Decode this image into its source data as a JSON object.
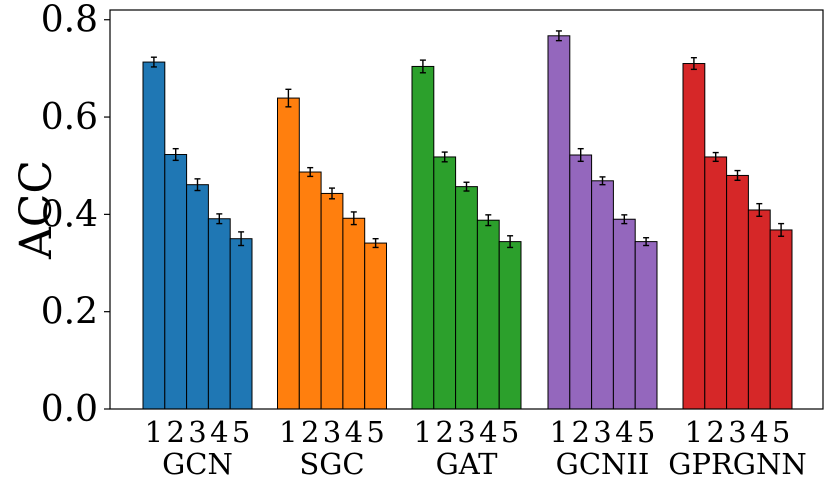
{
  "chart_data": {
    "type": "bar",
    "title": "",
    "ylabel": "ACC",
    "xlabel": "",
    "ylim": [
      0,
      0.82
    ],
    "yticks": [
      "0.0",
      "0.2",
      "0.4",
      "0.6",
      "0.8"
    ],
    "ytick_values": [
      0.0,
      0.2,
      0.4,
      0.6,
      0.8
    ],
    "grid": false,
    "legend": "none",
    "subcategories": [
      "1",
      "2",
      "3",
      "4",
      "5"
    ],
    "groups": [
      {
        "name": "GCN",
        "color": "#1f77b4",
        "values": [
          0.713,
          0.523,
          0.461,
          0.391,
          0.35
        ],
        "errors": [
          0.01,
          0.012,
          0.012,
          0.01,
          0.014
        ]
      },
      {
        "name": "SGC",
        "color": "#ff7f0e",
        "values": [
          0.639,
          0.487,
          0.443,
          0.392,
          0.341
        ],
        "errors": [
          0.018,
          0.009,
          0.011,
          0.013,
          0.009
        ]
      },
      {
        "name": "GAT",
        "color": "#2ca02c",
        "values": [
          0.704,
          0.518,
          0.457,
          0.388,
          0.344
        ],
        "errors": [
          0.013,
          0.01,
          0.009,
          0.011,
          0.012
        ]
      },
      {
        "name": "GCNII",
        "color": "#9467bd",
        "values": [
          0.767,
          0.522,
          0.469,
          0.39,
          0.344
        ],
        "errors": [
          0.01,
          0.013,
          0.008,
          0.009,
          0.008
        ]
      },
      {
        "name": "GPRGNN",
        "color": "#d62728",
        "values": [
          0.71,
          0.518,
          0.48,
          0.409,
          0.368
        ],
        "errors": [
          0.012,
          0.009,
          0.01,
          0.013,
          0.013
        ]
      }
    ]
  }
}
